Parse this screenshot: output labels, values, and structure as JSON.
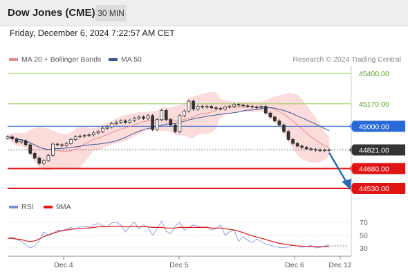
{
  "header": {
    "title": "Dow Jones (CME)",
    "timeframe": "30 MIN",
    "datetime": "Friday, December 6, 2024 7:22:57 AM CET"
  },
  "legend": {
    "ma20_label": "MA 20 + Bollinger Bands",
    "ma50_label": "MA 50",
    "credit": "Research © 2024 Trading Central",
    "rsi_label": "RSI",
    "rsi_ma_label": "9MA"
  },
  "colors": {
    "ma20": "#f08a8a",
    "ma50": "#3a5a9a",
    "bollinger_fill": "#fbd5d5",
    "resistance": "#2a6ad8",
    "target_line": "#8fcc55",
    "support": "#e01414",
    "rsi": "#6e8fd8",
    "rsi_ma": "#e01414",
    "arrow": "#2a6ab8",
    "current_box": "#333333"
  },
  "chart_data": [
    {
      "type": "candlestick",
      "title": "Dow Jones (CME)",
      "timeframe": "30 MIN",
      "x_ticks": [
        "Dec 4",
        "Dec 5",
        "Dec 6",
        "Dec 12"
      ],
      "y_ticks": [
        45400,
        45170,
        45000,
        44821,
        44680,
        44530
      ],
      "ylim": [
        44500,
        45460
      ],
      "levels": [
        {
          "value": 45400,
          "label": "45400.00",
          "kind": "target"
        },
        {
          "value": 45170,
          "label": "45170.00",
          "kind": "target"
        },
        {
          "value": 45000,
          "label": "45000.00",
          "kind": "resistance"
        },
        {
          "value": 44821,
          "label": "44821.00",
          "kind": "current"
        },
        {
          "value": 44680,
          "label": "44680.00",
          "kind": "support"
        },
        {
          "value": 44530,
          "label": "44530.00",
          "kind": "support"
        }
      ],
      "close_series": [
        44920,
        44905,
        44880,
        44890,
        44860,
        44795,
        44760,
        44720,
        44740,
        44780,
        44865,
        44860,
        44855,
        44870,
        44900,
        44920,
        44925,
        44930,
        44935,
        44950,
        44960,
        44985,
        44995,
        45020,
        45030,
        45040,
        45030,
        45045,
        45060,
        45070,
        45060,
        45080,
        44975,
        45050,
        45120,
        45050,
        45010,
        44960,
        45080,
        45115,
        45190,
        45130,
        45150,
        45145,
        45150,
        45140,
        45135,
        45130,
        45145,
        45150,
        45165,
        45160,
        45155,
        45150,
        45145,
        45140,
        45150,
        45100,
        45070,
        45040,
        45010,
        44960,
        44900,
        44870,
        44850,
        44840,
        44830,
        44825,
        44820,
        44815,
        44820,
        44821
      ],
      "forecast_arrow": {
        "from": 44821,
        "to": 44530
      }
    },
    {
      "type": "line",
      "title": "RSI",
      "y_ticks": [
        70,
        50,
        30
      ],
      "ylim": [
        20,
        80
      ],
      "series": [
        {
          "name": "RSI",
          "values": [
            45,
            47,
            44,
            40,
            35,
            30,
            33,
            42,
            55,
            50,
            52,
            58,
            56,
            60,
            62,
            59,
            63,
            64,
            62,
            66,
            68,
            65,
            63,
            69,
            70,
            66,
            55,
            64,
            70,
            60,
            66,
            62,
            50,
            60,
            72,
            56,
            52,
            64,
            70,
            58,
            62,
            66,
            64,
            62,
            63,
            58,
            60,
            66,
            50,
            55,
            58,
            40,
            48,
            42,
            38,
            44,
            40,
            36,
            34,
            32,
            31,
            30,
            32,
            34,
            33,
            31,
            32,
            34,
            30,
            31,
            33,
            35
          ]
        },
        {
          "name": "9MA",
          "values": [
            45,
            45,
            44,
            43,
            41,
            40,
            41,
            44,
            48,
            50,
            53,
            55,
            57,
            58,
            59,
            60,
            60,
            61,
            61,
            62,
            63,
            63,
            63,
            64,
            64,
            64,
            63,
            63,
            64,
            63,
            63,
            63,
            62,
            62,
            62,
            61,
            61,
            61,
            62,
            62,
            62,
            62,
            62,
            62,
            62,
            61,
            61,
            61,
            60,
            59,
            58,
            56,
            54,
            51,
            49,
            47,
            45,
            43,
            41,
            39,
            37,
            36,
            35,
            34,
            33,
            33,
            32,
            32,
            32,
            32,
            32,
            32
          ]
        }
      ]
    }
  ]
}
